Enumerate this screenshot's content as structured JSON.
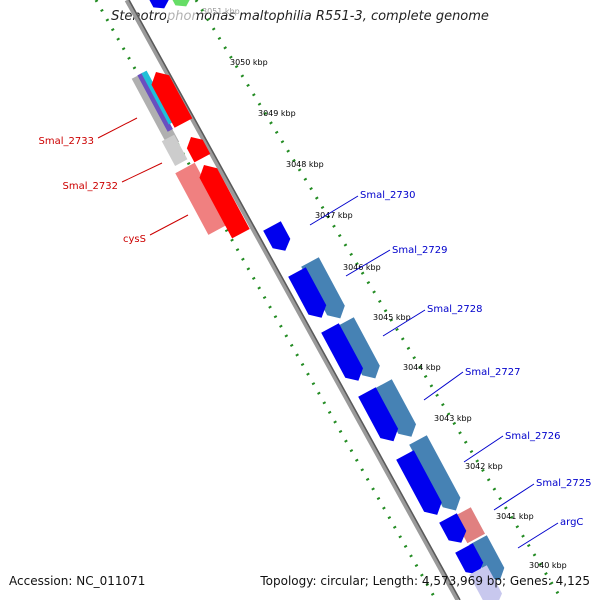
{
  "title": "Stenotrophomonas maltophilia R551-3, complete genome",
  "accession": "Accession: NC_011071",
  "summary": "Topology: circular; Length: 4,573,969 bp; Genes: 4,125",
  "ticks": [
    "3051 kbp",
    "3050 kbp",
    "3049 kbp",
    "3048 kbp",
    "3047 kbp",
    "3046 kbp",
    "3045 kbp",
    "3044 kbp",
    "3043 kbp",
    "3042 kbp",
    "3041 kbp",
    "3040 kbp"
  ],
  "gene_labels_left": [
    "Smal_2733",
    "Smal_2732",
    "cysS"
  ],
  "gene_labels_right": [
    "Smal_2730",
    "Smal_2729",
    "Smal_2728",
    "Smal_2727",
    "Smal_2726",
    "Smal_2725",
    "argC"
  ],
  "colors": {
    "reverse_cds": "#ff0000",
    "reverse_cds_light": "#f08080",
    "forward_cds": "#0000ee",
    "forward_track_light": "#4682b4",
    "backbone": "#808080",
    "gc_dots": "#228b22",
    "left_label": "#cc0000",
    "right_label": "#0000cc",
    "tick_text": "#000000"
  }
}
